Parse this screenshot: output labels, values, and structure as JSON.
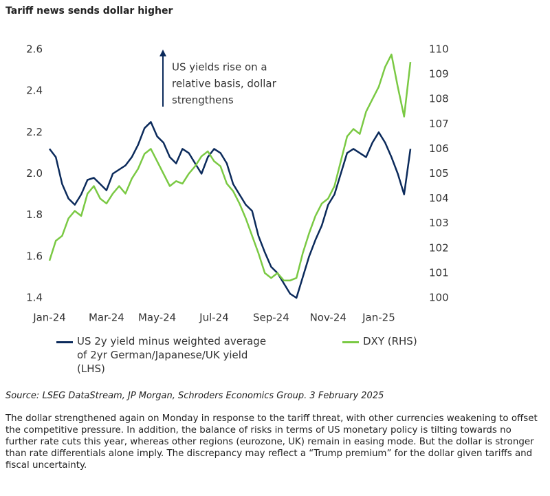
{
  "chart_data": {
    "type": "line",
    "title": "Tariff news sends dollar higher",
    "categories": [
      "Jan-24",
      null,
      null,
      null,
      null,
      null,
      null,
      null,
      null,
      "Mar-24",
      null,
      null,
      null,
      null,
      null,
      null,
      null,
      "May-24",
      null,
      null,
      null,
      null,
      null,
      null,
      null,
      null,
      "Jul-24",
      null,
      null,
      null,
      null,
      null,
      null,
      null,
      null,
      "Sep-24",
      null,
      null,
      null,
      null,
      null,
      null,
      null,
      null,
      "Nov-24",
      null,
      null,
      null,
      null,
      null,
      null,
      null,
      "Jan-25",
      null,
      null,
      null,
      null,
      null
    ],
    "series": [
      {
        "name": "US 2y yield minus weighted average of 2yr German/Japanese/UK yield (LHS)",
        "color": "#0b2a5b",
        "axis": "y",
        "values": [
          2.12,
          2.08,
          1.95,
          1.88,
          1.85,
          1.9,
          1.97,
          1.98,
          1.95,
          1.92,
          2.0,
          2.02,
          2.04,
          2.08,
          2.14,
          2.22,
          2.25,
          2.18,
          2.15,
          2.08,
          2.05,
          2.12,
          2.1,
          2.05,
          2.0,
          2.08,
          2.12,
          2.1,
          2.05,
          1.95,
          1.9,
          1.85,
          1.82,
          1.7,
          1.62,
          1.55,
          1.52,
          1.47,
          1.42,
          1.4,
          1.5,
          1.6,
          1.68,
          1.75,
          1.85,
          1.9,
          2.0,
          2.1,
          2.12,
          2.1,
          2.08,
          2.15,
          2.2,
          2.15,
          2.08,
          2.0,
          1.9,
          2.12
        ]
      },
      {
        "name": "DXY (RHS)",
        "color": "#7ac943",
        "axis": "y2",
        "values": [
          101.5,
          102.3,
          102.5,
          103.2,
          103.5,
          103.3,
          104.2,
          104.5,
          104.0,
          103.8,
          104.2,
          104.5,
          104.2,
          104.8,
          105.2,
          105.8,
          106.0,
          105.5,
          105.0,
          104.5,
          104.7,
          104.6,
          105.0,
          105.3,
          105.7,
          105.9,
          105.5,
          105.3,
          104.6,
          104.3,
          103.8,
          103.2,
          102.5,
          101.8,
          101.0,
          100.8,
          101.0,
          100.7,
          100.7,
          100.8,
          101.8,
          102.6,
          103.3,
          103.8,
          104.0,
          104.5,
          105.5,
          106.5,
          106.8,
          106.6,
          107.5,
          108.0,
          108.5,
          109.3,
          109.8,
          108.5,
          107.3,
          109.5
        ]
      }
    ],
    "ylim": [
      1.4,
      2.6
    ],
    "yticks": [
      1.4,
      1.6,
      1.8,
      {
        "value": 2,
        "label": "2.0"
      },
      2.2,
      2.4,
      2.6
    ],
    "y2lim": [
      100,
      110
    ],
    "y2ticks": [
      100,
      101,
      102,
      103,
      104,
      105,
      106,
      107,
      108,
      109,
      110
    ],
    "grid": false,
    "annotation": [
      "US yields rise on a",
      "relative basis, dollar",
      "strengthens"
    ]
  },
  "source": "Source: LSEG DataStream, JP Morgan, Schroders Economics Group. 3 February 2025",
  "note": "The dollar strengthened again on Monday in response to the tariff threat, with other currencies weakening to offset the competitive pressure. In addition, the balance of risks in terms of US monetary policy is tilting towards no further rate cuts this year, whereas other regions (eurozone, UK) remain in easing mode.  But the dollar is stronger than rate differentials alone imply. The discrepancy may reflect a “Trump premium” for the dollar given tariffs and fiscal uncertainty."
}
